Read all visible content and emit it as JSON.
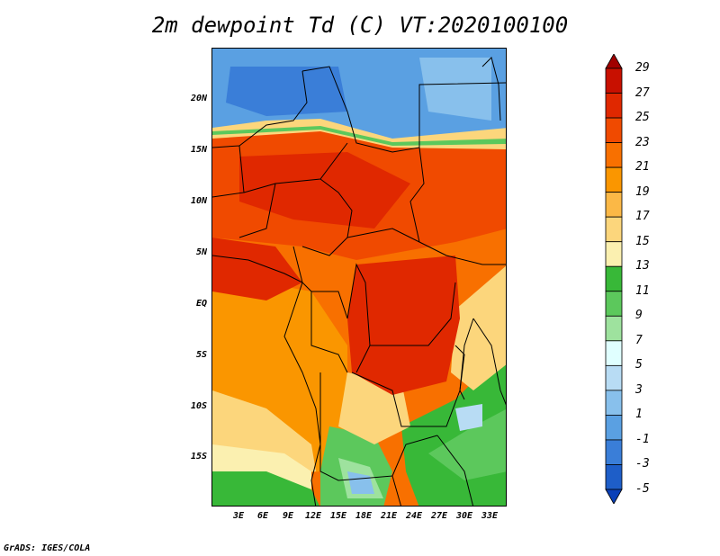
{
  "title": "2m dewpoint Td (C) VT:2020100100",
  "credit": "GrADS: IGES/COLA",
  "y_axis": {
    "labels": [
      "20N",
      "15N",
      "10N",
      "5N",
      "EQ",
      "5S",
      "10S",
      "15S"
    ]
  },
  "x_axis": {
    "labels": [
      "3E",
      "6E",
      "9E",
      "12E",
      "15E",
      "18E",
      "21E",
      "24E",
      "27E",
      "30E",
      "33E"
    ]
  },
  "colorbar": {
    "labels": [
      "29",
      "27",
      "25",
      "23",
      "21",
      "19",
      "17",
      "15",
      "13",
      "11",
      "9",
      "7",
      "5",
      "3",
      "1",
      "-1",
      "-3",
      "-5"
    ],
    "colors": [
      "#a00000",
      "#c81000",
      "#e02800",
      "#f04a00",
      "#f87000",
      "#fa9600",
      "#fbb846",
      "#fcd67c",
      "#fbf0b0",
      "#38b838",
      "#5cc85c",
      "#9ee29e",
      "#e0ffff",
      "#b8dcf4",
      "#88c0ec",
      "#5aa0e2",
      "#3a7ed8",
      "#1e5ec8",
      "#0a40b8"
    ]
  },
  "map_colors": {
    "dry_north": "#3a7ed8",
    "sahel_moist": "#f04a00",
    "core_moist": "#e02800",
    "gulf_guinea": "#f87000",
    "south_interior": "#fa9600",
    "kalahari": "#fcd67c",
    "green_zone": "#38b838",
    "east_high": "#5cc85c"
  }
}
